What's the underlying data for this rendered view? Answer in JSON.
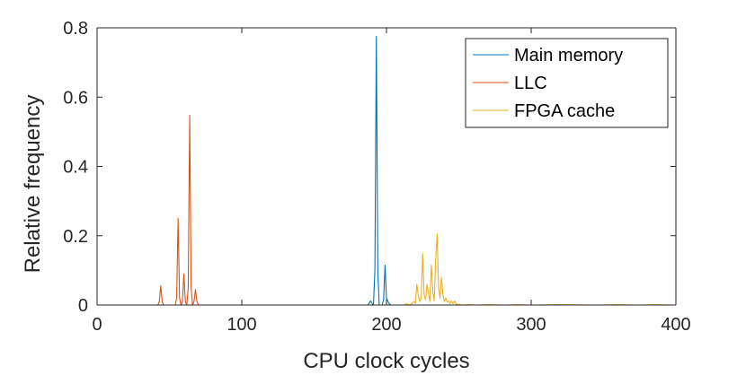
{
  "chart_data": {
    "type": "line",
    "xlabel": "CPU clock cycles",
    "ylabel": "Relative frequency",
    "xlim": [
      0,
      400
    ],
    "ylim": [
      0,
      0.8
    ],
    "xticks": [
      "0",
      "100",
      "200",
      "300",
      "400"
    ],
    "yticks": [
      "0",
      "0.2",
      "0.4",
      "0.6",
      "0.8"
    ],
    "grid": false,
    "legend_position": "top-right",
    "series": [
      {
        "name": "Main memory",
        "color": "#0072BD",
        "x": [
          180,
          187,
          188,
          189,
          190,
          191,
          192,
          193,
          194,
          195,
          196,
          197,
          198,
          199,
          200,
          201,
          202,
          203
        ],
        "y": [
          0,
          0,
          0.005,
          0.012,
          0.005,
          0,
          0.1,
          0.775,
          0.1,
          0,
          0,
          0,
          0.015,
          0.115,
          0.02,
          0.01,
          0.003,
          0
        ]
      },
      {
        "name": "LLC",
        "color": "#D95319",
        "x": [
          34,
          42,
          43,
          44,
          45,
          46,
          47,
          54,
          55,
          56,
          57,
          58,
          59,
          60,
          61,
          62,
          63,
          64,
          65,
          66,
          67,
          68,
          69,
          70,
          71,
          180
        ],
        "y": [
          0,
          0,
          0.01,
          0.055,
          0.01,
          0,
          0,
          0,
          0.02,
          0.25,
          0.02,
          0,
          0.01,
          0.09,
          0.01,
          0,
          0.05,
          0.548,
          0.05,
          0,
          0.01,
          0.045,
          0.01,
          0,
          0,
          0
        ]
      },
      {
        "name": "FPGA cache",
        "color": "#EDB120",
        "x": [
          205,
          212,
          213,
          214,
          215,
          216,
          217,
          218,
          219,
          220,
          221,
          222,
          223,
          224,
          225,
          226,
          227,
          228,
          229,
          230,
          231,
          232,
          233,
          234,
          235,
          236,
          237,
          238,
          239,
          240,
          241,
          242,
          243,
          244,
          245,
          246,
          247,
          248,
          249,
          250,
          251,
          252,
          256,
          262,
          270,
          282,
          290,
          300,
          320,
          345,
          360,
          375,
          385,
          400
        ],
        "y": [
          0,
          0,
          0.002,
          0.004,
          0.002,
          0,
          0.003,
          0.006,
          0.01,
          0.005,
          0.06,
          0.025,
          0.01,
          0.02,
          0.148,
          0.03,
          0.015,
          0.06,
          0.035,
          0.01,
          0.115,
          0.04,
          0.012,
          0.13,
          0.205,
          0.05,
          0.02,
          0.08,
          0.03,
          0.01,
          0.02,
          0.008,
          0.012,
          0.004,
          0.012,
          0.004,
          0.012,
          0.003,
          0.002,
          0.002,
          0.001,
          0,
          0.001,
          0,
          0.001,
          0,
          0.001,
          0,
          0.001,
          0,
          0.001,
          0,
          0.001,
          0
        ]
      }
    ]
  }
}
